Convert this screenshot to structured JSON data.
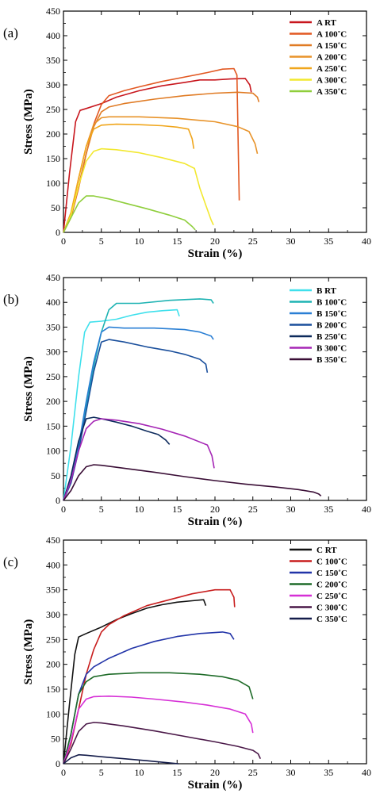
{
  "chart_data": [
    {
      "type": "line",
      "panel_label": "(a)",
      "xlabel": "Strain (%)",
      "ylabel": "Stress (MPa)",
      "xlim": [
        0,
        40
      ],
      "ylim": [
        0,
        450
      ],
      "xticks": [
        0,
        5,
        10,
        15,
        20,
        25,
        30,
        35,
        40
      ],
      "yticks": [
        0,
        50,
        100,
        150,
        200,
        250,
        300,
        350,
        400,
        450
      ],
      "legend_position": "top-right",
      "series": [
        {
          "name": "A RT",
          "color": "#c8161d",
          "x": [
            0,
            0.8,
            1.6,
            2.2,
            3,
            5,
            7,
            10,
            13,
            16,
            18,
            20,
            22,
            24,
            24.6,
            24.8
          ],
          "y": [
            0,
            120,
            225,
            248,
            252,
            262,
            275,
            288,
            298,
            305,
            310,
            310,
            312,
            313,
            300,
            285
          ]
        },
        {
          "name": "A 100˚C",
          "color": "#e25822",
          "x": [
            0,
            1,
            2,
            3,
            4,
            5,
            6,
            8,
            10,
            13,
            16,
            19,
            21,
            22.5,
            22.9,
            23.1,
            23.2
          ],
          "y": [
            0,
            30,
            90,
            160,
            220,
            260,
            278,
            288,
            296,
            307,
            316,
            325,
            332,
            333,
            320,
            150,
            65
          ]
        },
        {
          "name": "A 150˚C",
          "color": "#e07b24",
          "x": [
            0,
            1,
            2,
            3,
            4,
            5,
            6,
            8,
            12,
            16,
            20,
            23,
            25,
            25.6,
            25.8
          ],
          "y": [
            0,
            35,
            95,
            160,
            215,
            245,
            255,
            262,
            271,
            278,
            283,
            285,
            283,
            275,
            265
          ]
        },
        {
          "name": "A 200˚C",
          "color": "#e8932a",
          "x": [
            0,
            1,
            2,
            3,
            4,
            5,
            6,
            10,
            15,
            20,
            23,
            24.5,
            25.3,
            25.6
          ],
          "y": [
            0,
            40,
            110,
            175,
            220,
            233,
            235,
            235,
            232,
            225,
            215,
            205,
            180,
            160
          ]
        },
        {
          "name": "A 250˚C",
          "color": "#f0a61c",
          "x": [
            0,
            1,
            2,
            3,
            4,
            5,
            7,
            10,
            13,
            15,
            16.5,
            17,
            17.2
          ],
          "y": [
            0,
            40,
            110,
            175,
            210,
            218,
            220,
            219,
            217,
            214,
            210,
            190,
            170
          ]
        },
        {
          "name": "A 300˚C",
          "color": "#f2e830",
          "x": [
            0,
            1,
            2,
            3,
            4,
            5,
            7,
            10,
            13,
            16,
            17.3,
            18,
            18.8,
            19.5,
            19.8
          ],
          "y": [
            0,
            35,
            95,
            145,
            165,
            170,
            168,
            162,
            152,
            140,
            130,
            90,
            55,
            25,
            15
          ]
        },
        {
          "name": "A 350˚C",
          "color": "#8fce3c",
          "x": [
            0,
            1,
            2,
            3,
            4,
            6,
            8,
            11,
            14,
            16,
            17,
            17.4
          ],
          "y": [
            0,
            30,
            60,
            74,
            74,
            68,
            60,
            48,
            35,
            25,
            12,
            5
          ]
        }
      ]
    },
    {
      "type": "line",
      "panel_label": "(b)",
      "xlabel": "Strain (%)",
      "ylabel": "Stress (MPa)",
      "xlim": [
        0,
        40
      ],
      "ylim": [
        0,
        450
      ],
      "xticks": [
        0,
        5,
        10,
        15,
        20,
        25,
        30,
        35,
        40
      ],
      "yticks": [
        0,
        50,
        100,
        150,
        200,
        250,
        300,
        350,
        400,
        450
      ],
      "legend_position": "top-right",
      "series": [
        {
          "name": "B RT",
          "color": "#3fe0ec",
          "x": [
            0,
            1,
            2,
            2.8,
            3.5,
            5,
            7,
            9,
            11,
            13,
            15,
            15.3
          ],
          "y": [
            0,
            110,
            250,
            340,
            360,
            362,
            366,
            374,
            380,
            383,
            385,
            372
          ]
        },
        {
          "name": "B 100˚C",
          "color": "#1fb3b3",
          "x": [
            0,
            1,
            2,
            3,
            4,
            5,
            6,
            7,
            10,
            14,
            18,
            19.5,
            19.8
          ],
          "y": [
            0,
            40,
            110,
            190,
            270,
            340,
            385,
            398,
            398,
            404,
            407,
            405,
            398
          ]
        },
        {
          "name": "B 150˚C",
          "color": "#2a7fd4",
          "x": [
            0,
            1,
            2,
            3,
            4,
            5,
            6,
            8,
            12,
            16,
            18,
            19.5,
            19.8
          ],
          "y": [
            0,
            40,
            110,
            200,
            280,
            340,
            350,
            348,
            348,
            345,
            340,
            332,
            325
          ]
        },
        {
          "name": "B 200˚C",
          "color": "#1a4f9c",
          "x": [
            0,
            1,
            2,
            3,
            4,
            5,
            6,
            8,
            11,
            14,
            16,
            18,
            18.8,
            19
          ],
          "y": [
            0,
            35,
            100,
            180,
            260,
            320,
            325,
            320,
            310,
            302,
            295,
            285,
            275,
            258
          ]
        },
        {
          "name": "B 250˚C",
          "color": "#0d2a5c",
          "x": [
            0,
            1,
            2,
            3,
            4,
            5,
            7,
            9,
            11,
            12.5,
            13.5,
            14
          ],
          "y": [
            0,
            50,
            120,
            165,
            168,
            165,
            158,
            150,
            140,
            133,
            122,
            113
          ]
        },
        {
          "name": "B 300˚C",
          "color": "#a526b5",
          "x": [
            0,
            1,
            2,
            3,
            4,
            5,
            7,
            10,
            13,
            16,
            19,
            19.6,
            19.9
          ],
          "y": [
            0,
            40,
            100,
            145,
            160,
            165,
            162,
            155,
            144,
            130,
            112,
            90,
            65
          ]
        },
        {
          "name": "B 350˚C",
          "color": "#3a0e36",
          "x": [
            0,
            1,
            2,
            3,
            4,
            5,
            8,
            12,
            16,
            20,
            24,
            28,
            31,
            33,
            33.7,
            34
          ],
          "y": [
            0,
            20,
            50,
            68,
            72,
            71,
            65,
            57,
            48,
            40,
            33,
            27,
            22,
            17,
            13,
            9
          ]
        }
      ]
    },
    {
      "type": "line",
      "panel_label": "(c)",
      "xlabel": "Strain (%)",
      "ylabel": "Stress (MPa)",
      "xlim": [
        0,
        40
      ],
      "ylim": [
        0,
        450
      ],
      "xticks": [
        0,
        5,
        10,
        15,
        20,
        25,
        30,
        35,
        40
      ],
      "yticks": [
        0,
        50,
        100,
        150,
        200,
        250,
        300,
        350,
        400,
        450
      ],
      "legend_position": "top-right",
      "series": [
        {
          "name": "C RT",
          "color": "#111111",
          "x": [
            0,
            0.8,
            1.5,
            2,
            3,
            5,
            7,
            9,
            11,
            13,
            15,
            17,
            18.5,
            18.8
          ],
          "y": [
            0,
            120,
            220,
            255,
            262,
            275,
            290,
            302,
            313,
            320,
            325,
            328,
            330,
            318
          ]
        },
        {
          "name": "C 100˚C",
          "color": "#c81e1e",
          "x": [
            0,
            1,
            2,
            3,
            4,
            5,
            6,
            8,
            11,
            14,
            17,
            20,
            22,
            22.5,
            22.6
          ],
          "y": [
            0,
            40,
            110,
            180,
            230,
            265,
            280,
            298,
            318,
            330,
            342,
            350,
            350,
            335,
            315
          ]
        },
        {
          "name": "C 150˚C",
          "color": "#2234a8",
          "x": [
            0,
            1,
            2,
            3,
            4,
            6,
            9,
            12,
            15,
            18,
            21,
            22,
            22.5
          ],
          "y": [
            0,
            60,
            140,
            180,
            195,
            212,
            232,
            246,
            256,
            262,
            265,
            262,
            250
          ]
        },
        {
          "name": "C 200˚C",
          "color": "#1e6b28",
          "x": [
            0,
            1,
            2,
            3,
            4,
            6,
            10,
            14,
            18,
            21,
            23,
            24.5,
            25
          ],
          "y": [
            0,
            60,
            140,
            165,
            175,
            180,
            183,
            183,
            180,
            175,
            168,
            155,
            130
          ]
        },
        {
          "name": "C 250˚C",
          "color": "#d62fd6",
          "x": [
            0,
            1,
            2,
            3,
            4,
            6,
            9,
            12,
            16,
            19,
            22,
            24,
            24.8,
            25
          ],
          "y": [
            0,
            45,
            110,
            130,
            135,
            136,
            134,
            130,
            124,
            118,
            110,
            100,
            80,
            62
          ]
        },
        {
          "name": "C 300˚C",
          "color": "#4a1848",
          "x": [
            0,
            1,
            2,
            3,
            4,
            5,
            8,
            12,
            16,
            20,
            23,
            25,
            25.7,
            26
          ],
          "y": [
            0,
            30,
            65,
            80,
            83,
            82,
            76,
            66,
            55,
            44,
            35,
            27,
            20,
            10
          ]
        },
        {
          "name": "C 350˚C",
          "color": "#141c4a",
          "x": [
            0,
            1,
            2,
            3,
            5,
            8,
            11,
            13,
            14.5,
            15.2
          ],
          "y": [
            0,
            12,
            18,
            17,
            14,
            10,
            6,
            3,
            1,
            0
          ]
        }
      ]
    }
  ]
}
